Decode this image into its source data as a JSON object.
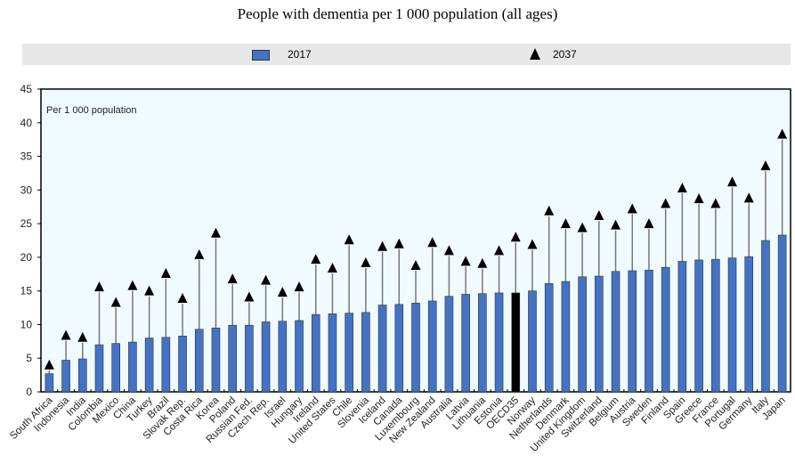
{
  "chart_data": {
    "type": "bar",
    "title": "People with dementia per 1 000 population (all ages)",
    "annotation": "Per 1 000 population",
    "xlabel": "",
    "ylabel": "",
    "ylim": [
      0,
      45
    ],
    "yticks": [
      0,
      5,
      10,
      15,
      20,
      25,
      30,
      35,
      40,
      45
    ],
    "legend_position": "top",
    "categories": [
      "South Africa",
      "Indonesia",
      "India",
      "Colombia",
      "Mexico",
      "China",
      "Turkey",
      "Brazil",
      "Slovak Rep.",
      "Costa Rica",
      "Korea",
      "Poland",
      "Russian Fed.",
      "Czech Rep.",
      "Israel",
      "Hungary",
      "Ireland",
      "United States",
      "Chile",
      "Slovenia",
      "Iceland",
      "Canada",
      "Luxembourg",
      "New Zealand",
      "Australia",
      "Latvia",
      "Lithuania",
      "Estonia",
      "OECD35",
      "Norway",
      "Netherlands",
      "Denmark",
      "United Kingdom",
      "Switzerland",
      "Belgium",
      "Austria",
      "Sweden",
      "Finland",
      "Spain",
      "Greece",
      "France",
      "Portugal",
      "Germany",
      "Italy",
      "Japan"
    ],
    "highlight": "OECD35",
    "series": [
      {
        "name": "2017",
        "type": "bar",
        "color": "#4472c4",
        "highlight_color": "#000000",
        "values": [
          2.7,
          4.7,
          4.9,
          7.0,
          7.2,
          7.4,
          8.0,
          8.1,
          8.3,
          9.3,
          9.5,
          9.9,
          9.9,
          10.4,
          10.5,
          10.6,
          11.5,
          11.6,
          11.7,
          11.8,
          12.9,
          13.0,
          13.2,
          13.5,
          14.2,
          14.5,
          14.6,
          14.7,
          14.7,
          15.0,
          16.1,
          16.4,
          17.1,
          17.2,
          17.9,
          18.0,
          18.1,
          18.5,
          19.4,
          19.6,
          19.7,
          19.9,
          20.1,
          22.5,
          23.3
        ]
      },
      {
        "name": "2037",
        "type": "marker",
        "marker": "triangle",
        "color": "#000000",
        "values": [
          4.0,
          8.4,
          8.1,
          15.6,
          13.3,
          15.8,
          15.0,
          17.6,
          13.9,
          20.4,
          23.6,
          16.8,
          14.1,
          16.6,
          14.8,
          15.6,
          19.7,
          18.4,
          22.6,
          19.2,
          21.6,
          22.0,
          18.8,
          22.2,
          21.0,
          19.4,
          19.1,
          21.0,
          23.0,
          21.9,
          26.9,
          25.0,
          24.4,
          26.2,
          24.8,
          27.2,
          25.0,
          28.0,
          30.3,
          28.7,
          28.0,
          31.2,
          28.8,
          33.6,
          38.3
        ]
      }
    ]
  },
  "legend": {
    "items": [
      {
        "label": "2017"
      },
      {
        "label": "2037"
      }
    ]
  }
}
